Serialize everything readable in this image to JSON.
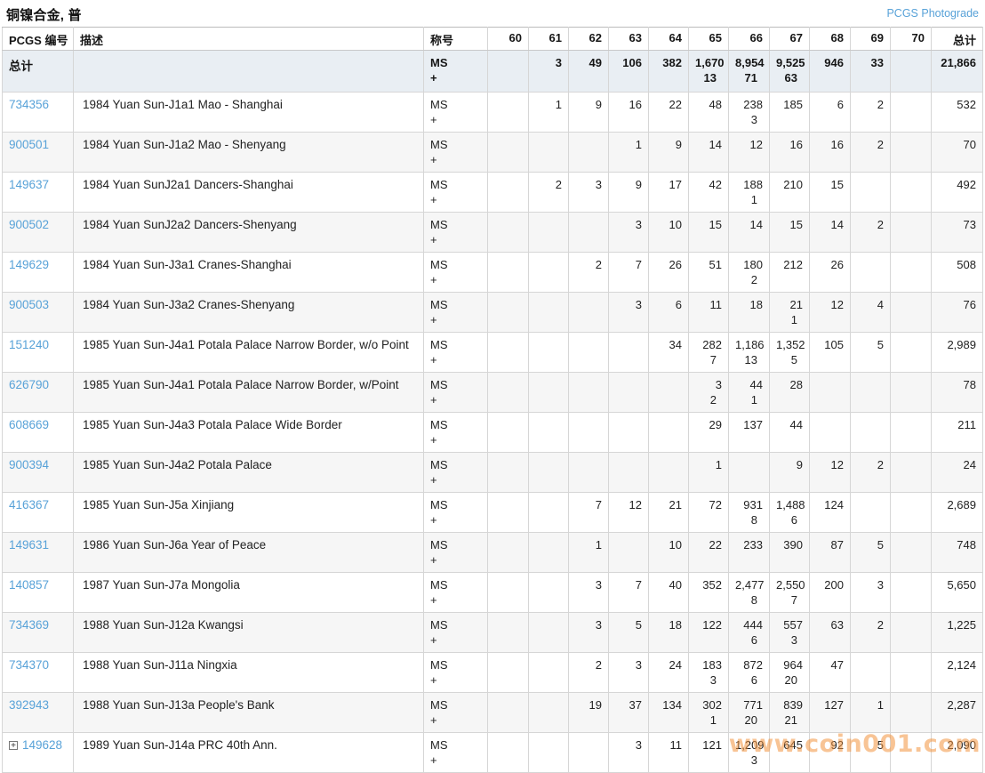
{
  "page": {
    "title": "铜镍合金, 普",
    "photograde_link": "PCGS Photograde",
    "watermark": "www.coin001.com"
  },
  "colors": {
    "link_blue": "#58a2d8",
    "totals_row_bg": "#e9eef3",
    "alt_row_bg": "#f6f6f6",
    "watermark_orange": "rgba(242,148,62,0.55)"
  },
  "table": {
    "headers": {
      "id": "PCGS 编号",
      "desc": "描述",
      "designation": "称号",
      "grades": [
        "60",
        "61",
        "62",
        "63",
        "64",
        "65",
        "66",
        "67",
        "68",
        "69",
        "70"
      ],
      "total": "总计"
    },
    "designation_lines": [
      "MS",
      "+"
    ],
    "totals": {
      "label": "总计",
      "cells": [
        [],
        [
          "3"
        ],
        [
          "49"
        ],
        [
          "106"
        ],
        [
          "382"
        ],
        [
          "1,670",
          "13"
        ],
        [
          "8,954",
          "71"
        ],
        [
          "9,525",
          "63"
        ],
        [
          "946"
        ],
        [
          "33"
        ],
        [],
        [
          "21,866"
        ]
      ]
    },
    "rows": [
      {
        "id": "734356",
        "expandable": false,
        "desc": "1984 Yuan Sun-J1a1 Mao - Shanghai",
        "cells": [
          [],
          [
            "1"
          ],
          [
            "9"
          ],
          [
            "16"
          ],
          [
            "22"
          ],
          [
            "48"
          ],
          [
            "238",
            "3"
          ],
          [
            "185"
          ],
          [
            "6"
          ],
          [
            "2"
          ],
          [],
          [
            "532"
          ]
        ]
      },
      {
        "id": "900501",
        "expandable": false,
        "desc": "1984 Yuan Sun-J1a2 Mao - Shenyang",
        "cells": [
          [],
          [],
          [],
          [
            "1"
          ],
          [
            "9"
          ],
          [
            "14"
          ],
          [
            "12"
          ],
          [
            "16"
          ],
          [
            "16"
          ],
          [
            "2"
          ],
          [],
          [
            "70"
          ]
        ]
      },
      {
        "id": "149637",
        "expandable": false,
        "desc": "1984 Yuan SunJ2a1 Dancers-Shanghai",
        "cells": [
          [],
          [
            "2"
          ],
          [
            "3"
          ],
          [
            "9"
          ],
          [
            "17"
          ],
          [
            "42"
          ],
          [
            "188",
            "1"
          ],
          [
            "210"
          ],
          [
            "15"
          ],
          [],
          [],
          [
            "492"
          ]
        ]
      },
      {
        "id": "900502",
        "expandable": false,
        "desc": "1984 Yuan SunJ2a2 Dancers-Shenyang",
        "cells": [
          [],
          [],
          [],
          [
            "3"
          ],
          [
            "10"
          ],
          [
            "15"
          ],
          [
            "14"
          ],
          [
            "15"
          ],
          [
            "14"
          ],
          [
            "2"
          ],
          [],
          [
            "73"
          ]
        ]
      },
      {
        "id": "149629",
        "expandable": false,
        "desc": "1984 Yuan Sun-J3a1 Cranes-Shanghai",
        "cells": [
          [],
          [],
          [
            "2"
          ],
          [
            "7"
          ],
          [
            "26"
          ],
          [
            "51"
          ],
          [
            "180",
            "2"
          ],
          [
            "212"
          ],
          [
            "26"
          ],
          [],
          [],
          [
            "508"
          ]
        ]
      },
      {
        "id": "900503",
        "expandable": false,
        "desc": "1984 Yuan Sun-J3a2 Cranes-Shenyang",
        "cells": [
          [],
          [],
          [],
          [
            "3"
          ],
          [
            "6"
          ],
          [
            "11"
          ],
          [
            "18"
          ],
          [
            "21",
            "1"
          ],
          [
            "12"
          ],
          [
            "4"
          ],
          [],
          [
            "76"
          ]
        ]
      },
      {
        "id": "151240",
        "expandable": false,
        "desc": "1985 Yuan Sun-J4a1 Potala Palace Narrow Border, w/o Point",
        "cells": [
          [],
          [],
          [],
          [],
          [
            "34"
          ],
          [
            "282",
            "7"
          ],
          [
            "1,186",
            "13"
          ],
          [
            "1,352",
            "5"
          ],
          [
            "105"
          ],
          [
            "5"
          ],
          [],
          [
            "2,989"
          ]
        ]
      },
      {
        "id": "626790",
        "expandable": false,
        "desc": "1985 Yuan Sun-J4a1 Potala Palace Narrow Border, w/Point",
        "cells": [
          [],
          [],
          [],
          [],
          [],
          [
            "3",
            "2"
          ],
          [
            "44",
            "1"
          ],
          [
            "28"
          ],
          [],
          [],
          [],
          [
            "78"
          ]
        ]
      },
      {
        "id": "608669",
        "expandable": false,
        "desc": "1985 Yuan Sun-J4a3 Potala Palace Wide Border",
        "cells": [
          [],
          [],
          [],
          [],
          [],
          [
            "29"
          ],
          [
            "137"
          ],
          [
            "44"
          ],
          [],
          [],
          [],
          [
            "211"
          ]
        ]
      },
      {
        "id": "900394",
        "expandable": false,
        "desc": "1985 Yuan Sun-J4a2 Potala Palace",
        "cells": [
          [],
          [],
          [],
          [],
          [],
          [
            "1"
          ],
          [],
          [
            "9"
          ],
          [
            "12"
          ],
          [
            "2"
          ],
          [],
          [
            "24"
          ]
        ]
      },
      {
        "id": "416367",
        "expandable": false,
        "desc": "1985 Yuan Sun-J5a Xinjiang",
        "cells": [
          [],
          [],
          [
            "7"
          ],
          [
            "12"
          ],
          [
            "21"
          ],
          [
            "72"
          ],
          [
            "931",
            "8"
          ],
          [
            "1,488",
            "6"
          ],
          [
            "124"
          ],
          [],
          [],
          [
            "2,689"
          ]
        ]
      },
      {
        "id": "149631",
        "expandable": false,
        "desc": "1986 Yuan Sun-J6a Year of Peace",
        "cells": [
          [],
          [],
          [
            "1"
          ],
          [],
          [
            "10"
          ],
          [
            "22"
          ],
          [
            "233"
          ],
          [
            "390"
          ],
          [
            "87"
          ],
          [
            "5"
          ],
          [],
          [
            "748"
          ]
        ]
      },
      {
        "id": "140857",
        "expandable": false,
        "desc": "1987 Yuan Sun-J7a Mongolia",
        "cells": [
          [],
          [],
          [
            "3"
          ],
          [
            "7"
          ],
          [
            "40"
          ],
          [
            "352"
          ],
          [
            "2,477",
            "8"
          ],
          [
            "2,550",
            "7"
          ],
          [
            "200"
          ],
          [
            "3"
          ],
          [],
          [
            "5,650"
          ]
        ]
      },
      {
        "id": "734369",
        "expandable": false,
        "desc": "1988 Yuan Sun-J12a Kwangsi",
        "cells": [
          [],
          [],
          [
            "3"
          ],
          [
            "5"
          ],
          [
            "18"
          ],
          [
            "122"
          ],
          [
            "444",
            "6"
          ],
          [
            "557",
            "3"
          ],
          [
            "63"
          ],
          [
            "2"
          ],
          [],
          [
            "1,225"
          ]
        ]
      },
      {
        "id": "734370",
        "expandable": false,
        "desc": "1988 Yuan Sun-J11a Ningxia",
        "cells": [
          [],
          [],
          [
            "2"
          ],
          [
            "3"
          ],
          [
            "24"
          ],
          [
            "183",
            "3"
          ],
          [
            "872",
            "6"
          ],
          [
            "964",
            "20"
          ],
          [
            "47"
          ],
          [],
          [],
          [
            "2,124"
          ]
        ]
      },
      {
        "id": "392943",
        "expandable": false,
        "desc": "1988 Yuan Sun-J13a People's Bank",
        "cells": [
          [],
          [],
          [
            "19"
          ],
          [
            "37"
          ],
          [
            "134"
          ],
          [
            "302",
            "1"
          ],
          [
            "771",
            "20"
          ],
          [
            "839",
            "21"
          ],
          [
            "127"
          ],
          [
            "1"
          ],
          [],
          [
            "2,287"
          ]
        ]
      },
      {
        "id": "149628",
        "expandable": true,
        "desc": "1989 Yuan Sun-J14a PRC 40th Ann.",
        "cells": [
          [],
          [],
          [],
          [
            "3"
          ],
          [
            "11"
          ],
          [
            "121"
          ],
          [
            "1,209",
            "3"
          ],
          [
            "645"
          ],
          [
            "92"
          ],
          [
            "5"
          ],
          [],
          [
            "2,090"
          ]
        ]
      }
    ]
  }
}
